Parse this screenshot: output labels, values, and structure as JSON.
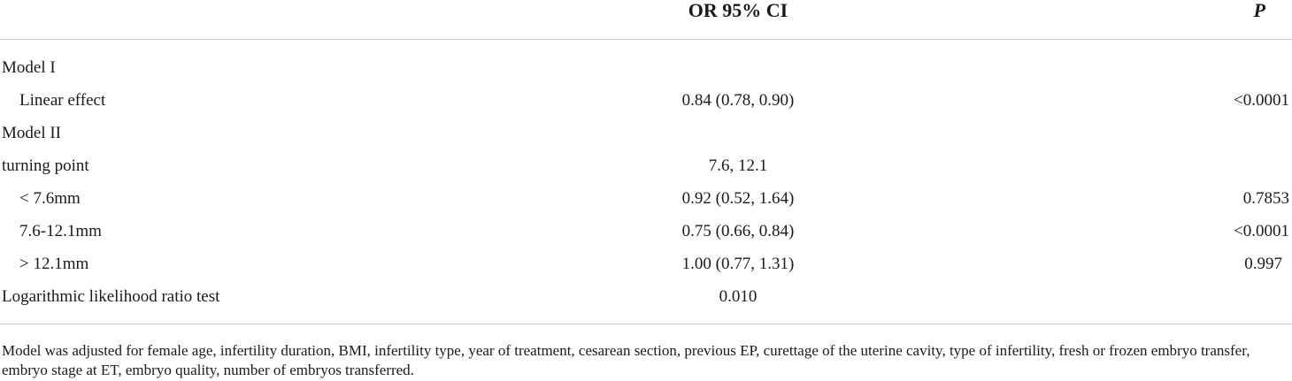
{
  "table": {
    "header": {
      "col_or": "OR 95% CI",
      "col_p": "P"
    },
    "rows": [
      {
        "label": "Model I",
        "or": "",
        "p": "",
        "indent": false
      },
      {
        "label": "Linear effect",
        "or": "0.84 (0.78, 0.90)",
        "p": "<0.0001",
        "indent": true
      },
      {
        "label": "Model II",
        "or": "",
        "p": "",
        "indent": false
      },
      {
        "label": "turning point",
        "or": "7.6, 12.1",
        "p": "",
        "indent": false
      },
      {
        "label": "< 7.6mm",
        "or": "0.92 (0.52, 1.64)",
        "p": "0.7853",
        "indent": true
      },
      {
        "label": "7.6-12.1mm",
        "or": "0.75 (0.66, 0.84)",
        "p": "<0.0001",
        "indent": true
      },
      {
        "label": "> 12.1mm",
        "or": "1.00 (0.77, 1.31)",
        "p": "0.997",
        "indent": true
      },
      {
        "label": "Logarithmic likelihood ratio test",
        "or": "0.010",
        "p": "",
        "indent": false
      }
    ],
    "footnote": "Model was adjusted for female age, infertility duration, BMI, infertility type, year of treatment, cesarean section, previous EP, curettage of the uterine cavity, type of infertility, fresh or frozen embryo transfer, embryo stage at ET, embryo quality, number of embryos transferred."
  }
}
